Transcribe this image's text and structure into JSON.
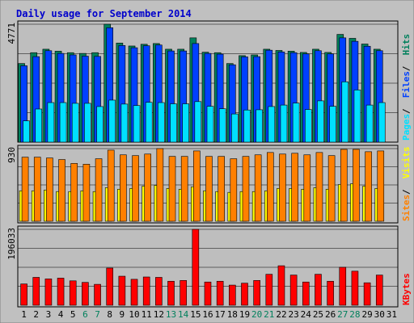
{
  "chart_data": {
    "type": "bar",
    "title": "Daily usage for September 2014",
    "colors": {
      "background": "#c0c0c0",
      "panel": "#bebebe",
      "title": "#0000cc",
      "hits": "#00805c",
      "files": "#0040ff",
      "pages": "#00e0ff",
      "visits": "#ffff00",
      "sites": "#ff8000",
      "kbytes": "#ff0000",
      "weekday_label": "#000000",
      "weekend_label": "#00805c"
    },
    "categories": [
      "1",
      "2",
      "3",
      "4",
      "5",
      "6",
      "7",
      "8",
      "9",
      "10",
      "11",
      "12",
      "13",
      "14",
      "15",
      "16",
      "17",
      "18",
      "19",
      "20",
      "21",
      "22",
      "23",
      "24",
      "25",
      "26",
      "27",
      "28",
      "29",
      "30",
      "31"
    ],
    "weekend_days": [
      "6",
      "7",
      "13",
      "14",
      "20",
      "21",
      "27",
      "28"
    ],
    "panels": [
      {
        "id": "hits-files-pages",
        "y_tick": "4771",
        "ylim": [
          0,
          4771
        ],
        "legend": [
          {
            "label": "Pages",
            "color_key": "pages"
          },
          {
            "label": "Files",
            "color_key": "files"
          },
          {
            "label": "Hits",
            "color_key": "hits"
          }
        ],
        "series": [
          {
            "name": "Hits",
            "color_key": "hits",
            "values": [
              3180,
              3620,
              3760,
              3680,
              3620,
              3590,
              3620,
              4771,
              4010,
              3890,
              3960,
              3990,
              3760,
              3760,
              4220,
              3640,
              3620,
              3180,
              3500,
              3530,
              3760,
              3710,
              3680,
              3630,
              3760,
              3630,
              4360,
              4200,
              3970,
              3760
            ]
          },
          {
            "name": "Files",
            "color_key": "files",
            "values": [
              3090,
              3460,
              3700,
              3590,
              3530,
              3480,
              3470,
              4630,
              3910,
              3820,
              3900,
              3930,
              3690,
              3690,
              3990,
              3590,
              3560,
              3130,
              3450,
              3460,
              3720,
              3650,
              3620,
              3570,
              3700,
              3570,
              4220,
              4080,
              3880,
              3700
            ]
          },
          {
            "name": "Pages",
            "color_key": "pages",
            "values": [
              860,
              1340,
              1600,
              1600,
              1570,
              1570,
              1440,
              1700,
              1540,
              1480,
              1610,
              1600,
              1550,
              1550,
              1640,
              1450,
              1350,
              1140,
              1300,
              1310,
              1440,
              1500,
              1580,
              1320,
              1670,
              1450,
              2440,
              2110,
              1500,
              1600
            ]
          }
        ]
      },
      {
        "id": "visits-sites",
        "y_tick": "930",
        "ylim": [
          0,
          930
        ],
        "legend": [
          {
            "label": "Sites",
            "color_key": "sites"
          },
          {
            "label": "Visits",
            "color_key": "visits"
          }
        ],
        "series": [
          {
            "name": "Visits",
            "color_key": "visits",
            "values": [
              390,
              390,
              400,
              380,
              380,
              390,
              380,
              430,
              410,
              420,
              450,
              460,
              420,
              410,
              440,
              390,
              380,
              370,
              380,
              380,
              390,
              420,
              420,
              410,
              430,
              410,
              470,
              480,
              450,
              420
            ]
          },
          {
            "name": "Sites",
            "color_key": "sites",
            "values": [
              820,
              820,
              810,
              790,
              740,
              730,
              800,
              910,
              850,
              840,
              860,
              930,
              830,
              830,
              900,
              830,
              830,
              800,
              830,
              850,
              880,
              860,
              870,
              850,
              880,
              840,
              920,
              920,
              890,
              900
            ]
          }
        ]
      },
      {
        "id": "kbytes",
        "y_tick": "196033",
        "ylim": [
          0,
          196033
        ],
        "legend": [
          {
            "label": "KBytes",
            "color_key": "kbytes"
          }
        ],
        "series": [
          {
            "name": "KBytes",
            "color_key": "kbytes",
            "values": [
              55000,
              72000,
              68000,
              70000,
              63000,
              59000,
              54000,
              96000,
              75000,
              67000,
              73000,
              72000,
              62000,
              64000,
              196033,
              60000,
              62000,
              52000,
              57000,
              64000,
              80000,
              102000,
              78000,
              60000,
              80000,
              62000,
              98000,
              88000,
              58000,
              78000
            ]
          }
        ]
      }
    ]
  }
}
